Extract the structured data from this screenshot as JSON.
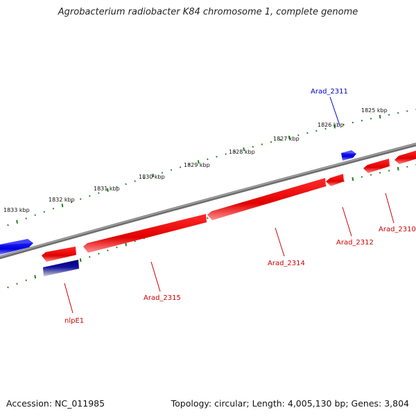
{
  "title": "Agrobacterium radiobacter K84 chromosome 1, complete genome",
  "footer": {
    "accession": "Accession: NC_011985",
    "summary": "Topology: circular; Length: 4,005,130 bp; Genes: 3,804"
  },
  "colors": {
    "forward_gene": "#2020ff",
    "reverse_gene": "#ee1111",
    "forward_rna": "#000080",
    "backbone": "#808080",
    "ticks": "#208020"
  },
  "kbp_labels": [
    "1833 kbp",
    "1832 kbp",
    "1831 kbp",
    "1830 kbp",
    "1829 kbp",
    "1828 kbp",
    "1827 kbp",
    "1826 kbp",
    "1825 kbp"
  ],
  "gene_labels": {
    "arad_2311": "Arad_2311",
    "arad_2310": "Arad_2310",
    "arad_2312": "Arad_2312",
    "arad_2314": "Arad_2314",
    "arad_2315": "Arad_2315",
    "nlpe1": "nlpE1"
  }
}
